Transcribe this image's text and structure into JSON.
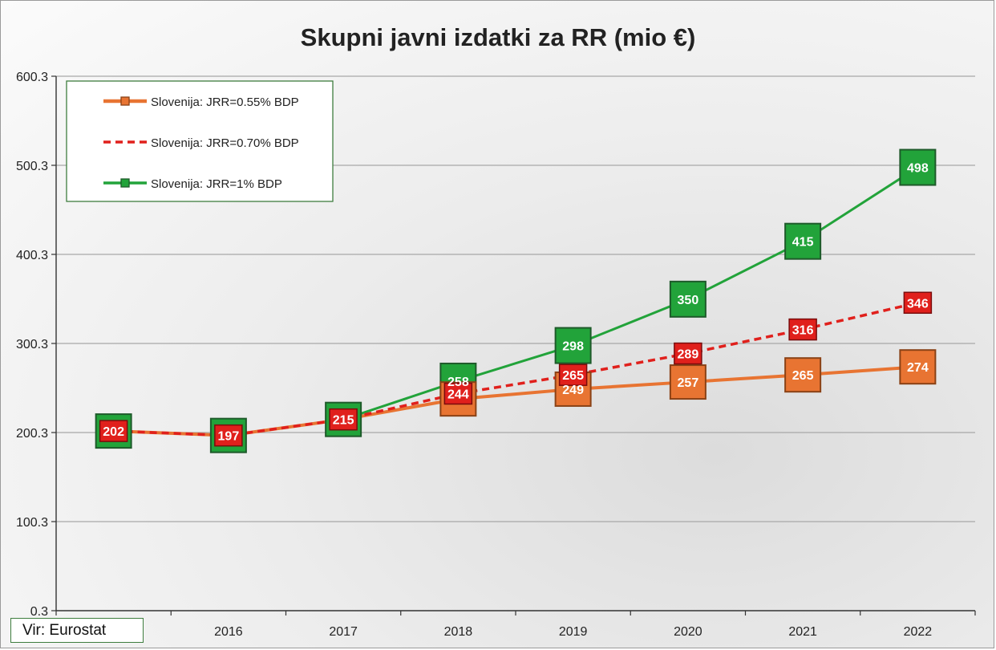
{
  "chart_data": {
    "type": "line",
    "title": "Skupni javni izdatki za RR (mio €)",
    "xlabel": "",
    "ylabel": "",
    "categories": [
      "",
      "2016",
      "2017",
      "2018",
      "2019",
      "2020",
      "2021",
      "2022"
    ],
    "x_tick_labels": [
      "2016",
      "2017",
      "2018",
      "2019",
      "2020",
      "2021",
      "2022"
    ],
    "ylim": [
      0.3,
      600.3
    ],
    "y_ticks": [
      0.3,
      100.3,
      200.3,
      300.3,
      400.3,
      500.3,
      600.3
    ],
    "y_tick_labels": [
      "0.3",
      "100.3",
      "200.3",
      "300.3",
      "400.3",
      "500.3",
      "600.3"
    ],
    "grid": "horizontal",
    "legend_position": "top-left",
    "series": [
      {
        "name": "Slovenija: JRR=0.55% BDP",
        "color": "#e87432",
        "line_style": "solid",
        "marker": "square",
        "values": [
          202,
          197,
          215,
          238,
          249,
          257,
          265,
          274
        ],
        "labels": [
          "",
          "",
          "",
          "",
          "249",
          "257",
          "265",
          "274"
        ]
      },
      {
        "name": "Slovenija: JRR=0.70% BDP",
        "color": "#e0201c",
        "line_style": "dashed",
        "marker": "square",
        "values": [
          202,
          197,
          215,
          244,
          265,
          289,
          316,
          346
        ],
        "labels": [
          "202",
          "197",
          "215",
          "244",
          "265",
          "289",
          "316",
          "346"
        ]
      },
      {
        "name": "Slovenija: JRR=1% BDP",
        "color": "#22a33a",
        "line_style": "solid",
        "marker": "square",
        "values": [
          202,
          197,
          215,
          258,
          298,
          350,
          415,
          498
        ],
        "labels": [
          "",
          "",
          "",
          "258",
          "298",
          "350",
          "415",
          "498"
        ]
      }
    ]
  },
  "source": {
    "text": "Vir: Eurostat"
  }
}
